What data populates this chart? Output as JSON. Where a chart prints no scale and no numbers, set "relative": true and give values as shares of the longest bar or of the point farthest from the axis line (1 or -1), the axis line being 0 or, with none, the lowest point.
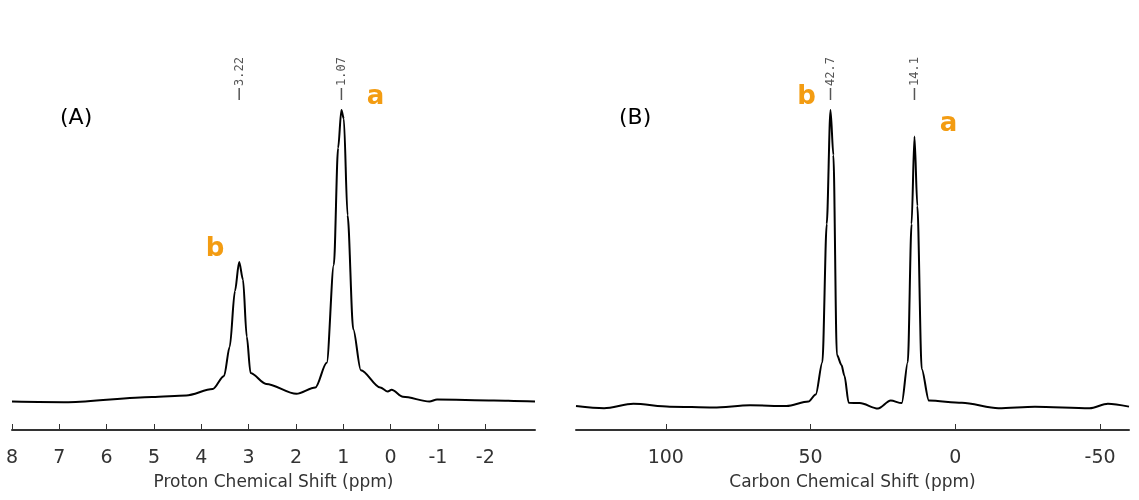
{
  "chart_data": [
    {
      "type": "line",
      "title": "(A)",
      "xlabel": "Proton Chemical Shift (ppm)",
      "relative": true,
      "marker": "none",
      "xlim": [
        8,
        -3.05
      ],
      "xticks": [
        8,
        7,
        6,
        5,
        4,
        3,
        2,
        1,
        0,
        -1,
        -2
      ],
      "series": [
        {
          "color": "#000000",
          "x": [
            8.0,
            6.81,
            5.04,
            4.32,
            3.76,
            3.52,
            3.4,
            3.29,
            3.2,
            3.12,
            3.04,
            2.96,
            2.63,
            1.99,
            1.59,
            1.35,
            1.2,
            1.11,
            1.04,
            0.99,
            0.91,
            0.79,
            0.63,
            0.22,
            0.06,
            -0.02,
            -0.26,
            -0.82,
            -0.98,
            -2.18,
            -3.05
          ],
          "values": [
            0.089,
            0.087,
            0.103,
            0.108,
            0.128,
            0.169,
            0.26,
            0.434,
            0.525,
            0.47,
            0.292,
            0.178,
            0.144,
            0.113,
            0.133,
            0.21,
            0.516,
            0.881,
            1.0,
            0.973,
            0.671,
            0.315,
            0.187,
            0.133,
            0.12,
            0.126,
            0.104,
            0.089,
            0.095,
            0.092,
            0.089
          ]
        }
      ],
      "annotations": [
        "3.22",
        "1.07",
        "b",
        "a"
      ]
    },
    {
      "type": "line",
      "title": "(B)",
      "xlabel": "Carbon Chemical Shift (ppm)",
      "relative": true,
      "marker": "none",
      "xlim": [
        131,
        -60
      ],
      "xticks": [
        100,
        50,
        0,
        -50
      ],
      "series": [
        {
          "color": "#000000",
          "x": [
            131,
            121.3,
            111.2,
            98.6,
            83.5,
            70.9,
            58.3,
            50.7,
            48.2,
            45.9,
            44.4,
            43.1,
            42.1,
            40.9,
            39.3,
            38.3,
            36.8,
            33.0,
            26.7,
            22.3,
            18.5,
            16.4,
            15.1,
            14.1,
            13.1,
            11.6,
            9.1,
            -2.3,
            -14.9,
            -27.5,
            -46.4,
            -52.7,
            -60
          ],
          "values": [
            0.075,
            0.068,
            0.082,
            0.073,
            0.07,
            0.077,
            0.075,
            0.089,
            0.111,
            0.212,
            0.644,
            1.0,
            0.859,
            0.235,
            0.203,
            0.17,
            0.085,
            0.084,
            0.067,
            0.092,
            0.084,
            0.212,
            0.644,
            0.917,
            0.7,
            0.191,
            0.092,
            0.085,
            0.068,
            0.073,
            0.068,
            0.082,
            0.073
          ]
        }
      ],
      "annotations": [
        "42.7",
        "14.1",
        "b",
        "a"
      ]
    }
  ]
}
